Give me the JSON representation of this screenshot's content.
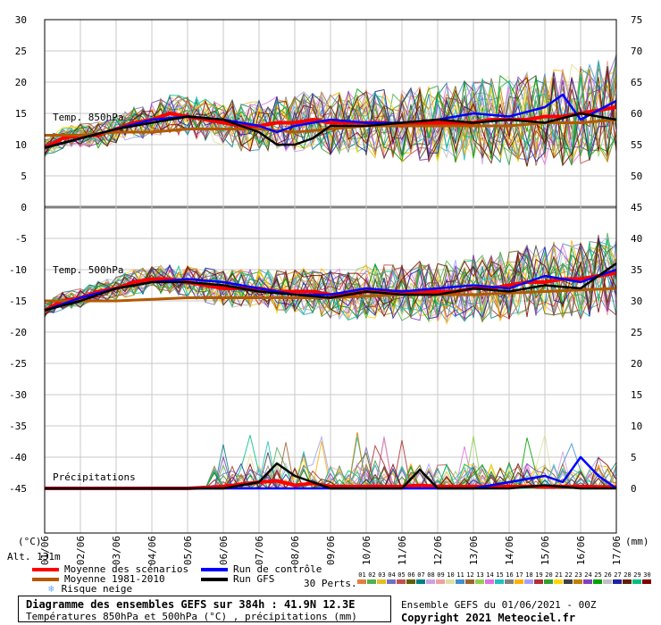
{
  "chart_data": {
    "type": "line",
    "title": "Diagramme des ensembles GEFS sur 384h : 41.9N 12.3E",
    "subtitle": "Températures 850hPa et 500hPa (°C) , précipitations (mm)",
    "x_tick_labels": [
      "01/06",
      "02/06",
      "03/06",
      "04/06",
      "05/06",
      "06/06",
      "07/06",
      "08/06",
      "09/06",
      "10/06",
      "11/06",
      "12/06",
      "13/06",
      "14/06",
      "15/06",
      "16/06",
      "17/06"
    ],
    "y_left_ticks": [
      30,
      25,
      20,
      15,
      10,
      5,
      0,
      -5,
      -10,
      -15,
      -20,
      -25,
      -30,
      -35,
      -40,
      -45
    ],
    "y_right_ticks": [
      75,
      70,
      65,
      60,
      55,
      50,
      45,
      40,
      35,
      30,
      25,
      20,
      15,
      10,
      5,
      0
    ],
    "y_left_unit": "(°C)",
    "x_unit": "(mm)",
    "altitude": "Alt. 131m",
    "panels": {
      "t850": {
        "label": "Temp. 850hPa",
        "ylim": [
          0,
          30
        ]
      },
      "t500": {
        "label": "Temp. 500hPa",
        "ylim": [
          -25,
          -5
        ]
      },
      "precip": {
        "label": "Précipitations",
        "ylim": [
          0,
          15
        ]
      }
    },
    "series": [
      {
        "name": "Moyenne des scénarios",
        "color": "#ff0000",
        "t850": [
          [
            0,
            9.5
          ],
          [
            0.5,
            11
          ],
          [
            1,
            11.5
          ],
          [
            1.5,
            11.5
          ],
          [
            2,
            12.5
          ],
          [
            2.5,
            13.5
          ],
          [
            3,
            14
          ],
          [
            3.5,
            15
          ],
          [
            4,
            14.5
          ],
          [
            4.5,
            14
          ],
          [
            5,
            13.5
          ],
          [
            5.5,
            13
          ],
          [
            6,
            13
          ],
          [
            6.5,
            13.5
          ],
          [
            7,
            13.5
          ],
          [
            7.5,
            14
          ],
          [
            8,
            13.5
          ],
          [
            8.5,
            13.5
          ],
          [
            9,
            13.5
          ],
          [
            9.5,
            13.5
          ],
          [
            10,
            13
          ],
          [
            10.5,
            13.5
          ],
          [
            11,
            13.5
          ],
          [
            11.5,
            13.5
          ],
          [
            12,
            13.5
          ],
          [
            12.5,
            14
          ],
          [
            13,
            14
          ],
          [
            13.5,
            14
          ],
          [
            14,
            14.5
          ],
          [
            14.5,
            14.5
          ],
          [
            15,
            15
          ],
          [
            15.5,
            15.5
          ],
          [
            16,
            16
          ]
        ],
        "t500": [
          [
            0,
            -16.5
          ],
          [
            0.5,
            -15
          ],
          [
            1,
            -14.5
          ],
          [
            1.5,
            -13.5
          ],
          [
            2,
            -13
          ],
          [
            2.5,
            -12
          ],
          [
            3,
            -11.5
          ],
          [
            3.5,
            -11.5
          ],
          [
            4,
            -12
          ],
          [
            4.5,
            -12.5
          ],
          [
            5,
            -13
          ],
          [
            5.5,
            -13
          ],
          [
            6,
            -13
          ],
          [
            6.5,
            -13.5
          ],
          [
            7,
            -13.5
          ],
          [
            7.5,
            -13.5
          ],
          [
            8,
            -14
          ],
          [
            8.5,
            -14
          ],
          [
            9,
            -13.5
          ],
          [
            9.5,
            -13.5
          ],
          [
            10,
            -13.5
          ],
          [
            10.5,
            -13.5
          ],
          [
            11,
            -13.5
          ],
          [
            11.5,
            -13.5
          ],
          [
            12,
            -13
          ],
          [
            12.5,
            -13
          ],
          [
            13,
            -12.5
          ],
          [
            13.5,
            -12
          ],
          [
            14,
            -12
          ],
          [
            14.5,
            -11.5
          ],
          [
            15,
            -11.5
          ],
          [
            15.5,
            -11
          ],
          [
            16,
            -10.5
          ]
        ],
        "precip": [
          [
            0,
            0
          ],
          [
            4,
            0
          ],
          [
            5,
            0.3
          ],
          [
            6,
            1
          ],
          [
            6.5,
            1.2
          ],
          [
            7,
            0.5
          ],
          [
            7.5,
            0.8
          ],
          [
            8,
            0.3
          ],
          [
            9,
            0.3
          ],
          [
            10,
            0.3
          ],
          [
            10.5,
            0.5
          ],
          [
            11,
            0.3
          ],
          [
            12,
            0.3
          ],
          [
            13,
            0.3
          ],
          [
            14,
            0.3
          ],
          [
            15,
            0.3
          ],
          [
            16,
            0.2
          ]
        ]
      },
      {
        "name": "Moyenne 1981-2010",
        "color": "#b35900",
        "t850": [
          [
            0,
            11.5
          ],
          [
            1,
            11.5
          ],
          [
            2,
            12
          ],
          [
            3,
            12
          ],
          [
            4,
            12.5
          ],
          [
            5,
            12.5
          ],
          [
            6,
            12.5
          ],
          [
            7,
            12
          ],
          [
            8,
            12.5
          ],
          [
            9,
            13
          ],
          [
            10,
            13
          ],
          [
            11,
            13
          ],
          [
            12,
            13
          ],
          [
            13,
            13
          ],
          [
            14,
            13.5
          ],
          [
            15,
            13.5
          ],
          [
            16,
            14
          ]
        ],
        "t500": [
          [
            0,
            -15
          ],
          [
            2,
            -15
          ],
          [
            4,
            -14.5
          ],
          [
            6,
            -14.5
          ],
          [
            8,
            -14.5
          ],
          [
            10,
            -14
          ],
          [
            12,
            -14
          ],
          [
            14,
            -13.5
          ],
          [
            16,
            -13
          ]
        ]
      },
      {
        "name": "Run de contrôle",
        "color": "#0000ff",
        "t850": [
          [
            0,
            9.5
          ],
          [
            1,
            11
          ],
          [
            2,
            12.5
          ],
          [
            3,
            14
          ],
          [
            4,
            14.5
          ],
          [
            5,
            14
          ],
          [
            6,
            13
          ],
          [
            6.5,
            12
          ],
          [
            7,
            13
          ],
          [
            8,
            14
          ],
          [
            9,
            13.5
          ],
          [
            10,
            13.5
          ],
          [
            11,
            14
          ],
          [
            12,
            15
          ],
          [
            13,
            14.5
          ],
          [
            14,
            16
          ],
          [
            14.5,
            18
          ],
          [
            15,
            14
          ],
          [
            16,
            17
          ]
        ],
        "t500": [
          [
            0,
            -16.5
          ],
          [
            1,
            -14.5
          ],
          [
            2,
            -13
          ],
          [
            3,
            -12
          ],
          [
            4,
            -11.5
          ],
          [
            5,
            -12
          ],
          [
            6,
            -13
          ],
          [
            7,
            -14
          ],
          [
            8,
            -14
          ],
          [
            9,
            -13
          ],
          [
            10,
            -13.5
          ],
          [
            11,
            -13
          ],
          [
            12,
            -12.5
          ],
          [
            13,
            -13
          ],
          [
            14,
            -11
          ],
          [
            15,
            -12
          ],
          [
            16,
            -10
          ]
        ],
        "precip": [
          [
            0,
            0
          ],
          [
            12,
            0
          ],
          [
            13,
            1
          ],
          [
            14,
            2
          ],
          [
            14.5,
            1
          ],
          [
            15,
            5
          ],
          [
            15.5,
            2
          ],
          [
            16,
            0
          ]
        ]
      },
      {
        "name": "Run GFS",
        "color": "#000000",
        "t850": [
          [
            0,
            9.5
          ],
          [
            1,
            11
          ],
          [
            2,
            12.5
          ],
          [
            3,
            13.5
          ],
          [
            4,
            14.5
          ],
          [
            5,
            14
          ],
          [
            6,
            12
          ],
          [
            6.5,
            10
          ],
          [
            7,
            10
          ],
          [
            7.5,
            11
          ],
          [
            8,
            13
          ],
          [
            9,
            13
          ],
          [
            10,
            13.5
          ],
          [
            11,
            14
          ],
          [
            12,
            13.5
          ],
          [
            13,
            14
          ],
          [
            14,
            13.5
          ],
          [
            15,
            15
          ],
          [
            16,
            14
          ]
        ],
        "t500": [
          [
            0,
            -16.5
          ],
          [
            1,
            -15
          ],
          [
            2,
            -13
          ],
          [
            3,
            -12
          ],
          [
            4,
            -12
          ],
          [
            5,
            -12.5
          ],
          [
            6,
            -13.5
          ],
          [
            7,
            -14
          ],
          [
            8,
            -14.5
          ],
          [
            9,
            -13.5
          ],
          [
            10,
            -14
          ],
          [
            11,
            -14
          ],
          [
            12,
            -13
          ],
          [
            13,
            -13.5
          ],
          [
            14,
            -12.5
          ],
          [
            15,
            -13
          ],
          [
            16,
            -9
          ]
        ],
        "precip": [
          [
            0,
            0
          ],
          [
            5,
            0
          ],
          [
            6,
            1
          ],
          [
            6.5,
            4
          ],
          [
            7,
            2
          ],
          [
            7.5,
            1
          ],
          [
            8,
            0
          ],
          [
            10,
            0
          ],
          [
            10.5,
            3
          ],
          [
            11,
            0
          ],
          [
            13,
            0
          ],
          [
            14,
            0.5
          ],
          [
            15,
            0
          ],
          [
            16,
            0
          ]
        ]
      }
    ],
    "legend": [
      {
        "label": "Moyenne des scénarios",
        "color": "#ff0000"
      },
      {
        "label": "Moyenne 1981-2010",
        "color": "#b35900"
      },
      {
        "label": "Risque neige",
        "color": "#66aaff"
      },
      {
        "label": "Run de contrôle",
        "color": "#0000ff"
      },
      {
        "label": "Run GFS",
        "color": "#000000"
      }
    ],
    "perturbations_label": "30 Perts.",
    "members": [
      {
        "id": "01",
        "color": "#e08040"
      },
      {
        "id": "02",
        "color": "#50b050"
      },
      {
        "id": "03",
        "color": "#e0c020"
      },
      {
        "id": "04",
        "color": "#7070c0"
      },
      {
        "id": "05",
        "color": "#c05050"
      },
      {
        "id": "06",
        "color": "#606000"
      },
      {
        "id": "07",
        "color": "#008080"
      },
      {
        "id": "08",
        "color": "#d0a0e0"
      },
      {
        "id": "09",
        "color": "#f0a0a0"
      },
      {
        "id": "10",
        "color": "#e0e0a0"
      },
      {
        "id": "11",
        "color": "#4090d0"
      },
      {
        "id": "12",
        "color": "#a06030"
      },
      {
        "id": "13",
        "color": "#90d050"
      },
      {
        "id": "14",
        "color": "#e070e0"
      },
      {
        "id": "15",
        "color": "#20c0c0"
      },
      {
        "id": "16",
        "color": "#808080"
      },
      {
        "id": "17",
        "color": "#ffb000"
      },
      {
        "id": "18",
        "color": "#a0a0ff"
      },
      {
        "id": "19",
        "color": "#b03030"
      },
      {
        "id": "20",
        "color": "#30a030"
      },
      {
        "id": "21",
        "color": "#ffd700"
      },
      {
        "id": "22",
        "color": "#404040"
      },
      {
        "id": "23",
        "color": "#c08000"
      },
      {
        "id": "24",
        "color": "#8040c0"
      },
      {
        "id": "25",
        "color": "#00a000"
      },
      {
        "id": "26",
        "color": "#c0c0c0"
      },
      {
        "id": "27",
        "color": "#2020a0"
      },
      {
        "id": "28",
        "color": "#602000"
      },
      {
        "id": "29",
        "color": "#00c080"
      },
      {
        "id": "30",
        "color": "#800000"
      }
    ],
    "run_info": "Ensemble GEFS du 01/06/2021 - 00Z",
    "copyright": "Copyright 2021 Meteociel.fr"
  }
}
